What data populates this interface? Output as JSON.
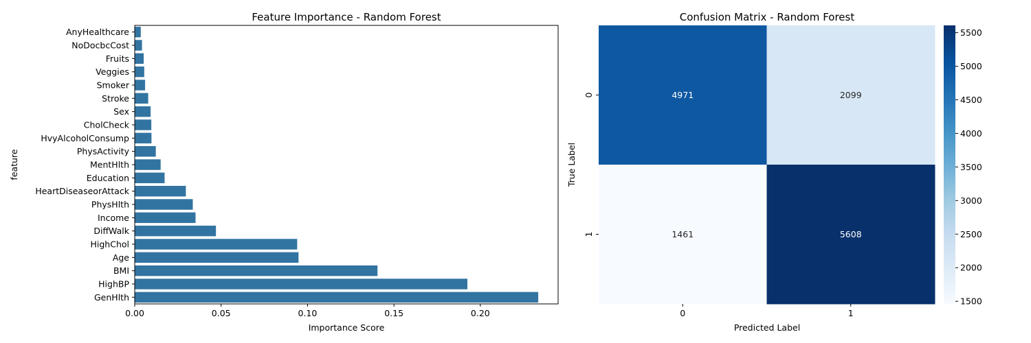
{
  "chart_data": [
    {
      "type": "bar",
      "orientation": "horizontal",
      "title": "Feature Importance - Random Forest",
      "xlabel": "Importance Score",
      "ylabel": "feature",
      "xlim": [
        0,
        0.245
      ],
      "xticks": [
        "0.00",
        "0.05",
        "0.10",
        "0.15",
        "0.20"
      ],
      "xtick_values": [
        0,
        0.05,
        0.1,
        0.15,
        0.2
      ],
      "color": "#3274a1",
      "grid": false,
      "categories": [
        "AnyHealthcare",
        "NoDocbcCost",
        "Fruits",
        "Veggies",
        "Smoker",
        "Stroke",
        "Sex",
        "CholCheck",
        "HvyAlcoholConsump",
        "PhysActivity",
        "MentHlth",
        "Education",
        "HeartDiseaseorAttack",
        "PhysHlth",
        "Income",
        "DiffWalk",
        "HighChol",
        "Age",
        "BMI",
        "HighBP",
        "GenHlth"
      ],
      "values": [
        0.0035,
        0.0042,
        0.0052,
        0.0055,
        0.006,
        0.0078,
        0.0092,
        0.0096,
        0.0097,
        0.0122,
        0.015,
        0.0173,
        0.0296,
        0.0336,
        0.0352,
        0.047,
        0.094,
        0.0948,
        0.1405,
        0.1925,
        0.2335
      ]
    },
    {
      "type": "heatmap",
      "title": "Confusion Matrix - Random Forest",
      "xlabel": "Predicted Label",
      "ylabel": "True Label",
      "x_categories": [
        "0",
        "1"
      ],
      "y_categories": [
        "0",
        "1"
      ],
      "values": [
        [
          4971,
          2099
        ],
        [
          1461,
          5608
        ]
      ],
      "colormap": "Blues",
      "vmin": 1461,
      "vmax": 5608,
      "colorbar_ticks": [
        "1500",
        "2000",
        "2500",
        "3000",
        "3500",
        "4000",
        "4500",
        "5000",
        "5500"
      ],
      "colorbar_tick_values": [
        1500,
        2000,
        2500,
        3000,
        3500,
        4000,
        4500,
        5000,
        5500
      ]
    }
  ]
}
